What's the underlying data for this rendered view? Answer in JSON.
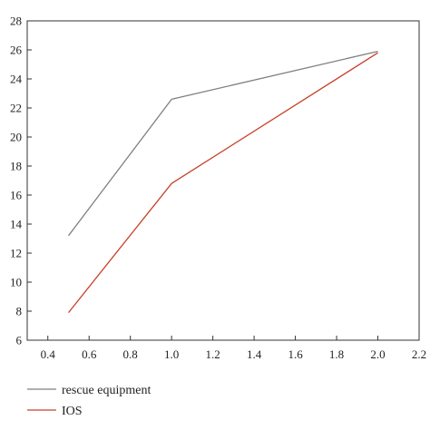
{
  "chart_data": {
    "type": "line",
    "title": "",
    "xlabel": "",
    "ylabel": "",
    "xlim": [
      0.3,
      2.2
    ],
    "ylim": [
      6,
      28
    ],
    "grid": false,
    "xticks": [
      0.4,
      0.6,
      0.8,
      1.0,
      1.2,
      1.4,
      1.6,
      1.8,
      2.0,
      2.2
    ],
    "xtick_labels": [
      "0.4",
      "0.6",
      "0.8",
      "1.0",
      "1.2",
      "1.4",
      "1.6",
      "1.8",
      "2.0",
      "2.2"
    ],
    "yticks": [
      6,
      8,
      10,
      12,
      14,
      16,
      18,
      20,
      22,
      24,
      26,
      28
    ],
    "ytick_labels": [
      "6",
      "8",
      "10",
      "12",
      "14",
      "16",
      "18",
      "20",
      "22",
      "24",
      "26",
      "28"
    ],
    "legend_position": "bottom-left",
    "series": [
      {
        "name": "rescue equipment",
        "color": "#7f7f7f",
        "x": [
          0.5,
          1.0,
          2.0
        ],
        "y": [
          13.2,
          22.6,
          25.9
        ]
      },
      {
        "name": "IOS",
        "color": "#c8402a",
        "x": [
          0.5,
          1.0,
          2.0
        ],
        "y": [
          7.9,
          16.8,
          25.8
        ]
      }
    ]
  }
}
